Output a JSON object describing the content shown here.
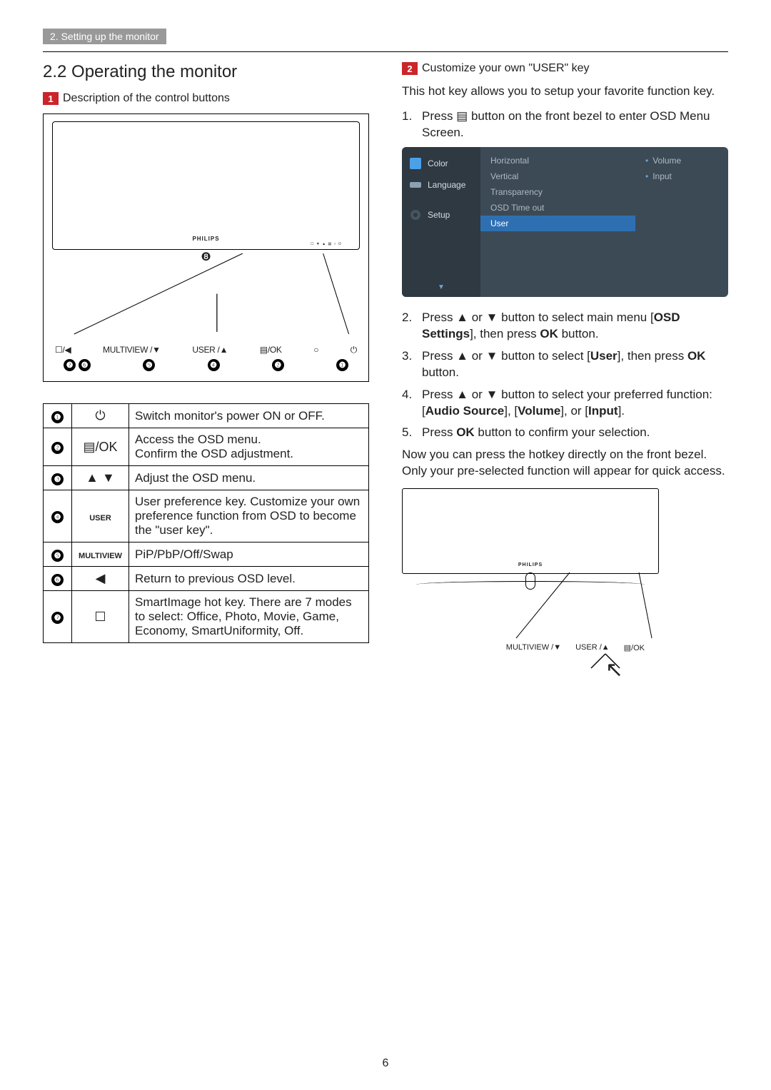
{
  "breadcrumb": "2. Setting up the monitor",
  "section_title": "2.2  Operating the monitor",
  "left": {
    "box1": {
      "num": "1",
      "title": "Description of the control buttons"
    },
    "brand": "PHILIPS",
    "ctrl_strip": {
      "b1_cue": "❽",
      "labels": [
        "☐/◀",
        "MULTIVIEW /▼",
        "USER /▲",
        "▤/OK",
        "○",
        "⏻"
      ],
      "nums": [
        "❼",
        "❻",
        "❺",
        "❹",
        "❷",
        "❶"
      ]
    },
    "table": [
      {
        "n": "❶",
        "icon": "⏻",
        "desc": "Switch monitor's power ON or OFF."
      },
      {
        "n": "❷",
        "icon": "▤/OK",
        "desc": "Access the OSD menu.\nConfirm the OSD adjustment."
      },
      {
        "n": "❸",
        "icon": "▲ ▼",
        "desc": "Adjust the OSD menu."
      },
      {
        "n": "❹",
        "icon": "USER",
        "desc": "User preference key. Customize your own preference function from OSD to become the \"user key\"."
      },
      {
        "n": "❺",
        "icon": "MULTIVIEW",
        "desc": "PiP/PbP/Off/Swap"
      },
      {
        "n": "❻",
        "icon": "◀",
        "desc": "Return to previous OSD level."
      },
      {
        "n": "❼",
        "icon": "☐",
        "desc": "SmartImage hot key. There are 7 modes to select: Office, Photo, Movie, Game, Economy, SmartUniformity, Off."
      }
    ]
  },
  "right": {
    "box2": {
      "num": "2",
      "title": "Customize your own \"USER\" key"
    },
    "intro": "This hot key allows you to setup your favorite function key.",
    "step1": "Press ▤ button on the front bezel to enter OSD Menu Screen.",
    "osd": {
      "left_items": [
        "Color",
        "Language",
        "",
        "Setup"
      ],
      "mid_items": [
        "Horizontal",
        "Vertical",
        "Transparency",
        "OSD Time out",
        "User"
      ],
      "mid_selected_index": 4,
      "right_items": [
        "Volume",
        "Input"
      ],
      "bg": "#3c4a55",
      "bg_left": "#2e3942",
      "sel_bg": "#2e6fb2"
    },
    "step2_a": "Press ▲ or ▼ button to select main menu [",
    "step2_b": "OSD Settings",
    "step2_c": "], then press ",
    "step2_d": "OK",
    "step2_e": " button.",
    "step3_a": "Press ▲ or ▼ button to select [",
    "step3_b": "User",
    "step3_c": "], then press ",
    "step3_d": "OK",
    "step3_e": " button.",
    "step4_a": "Press ▲ or ▼ button to select your preferred function: [",
    "step4_b": "Audio Source",
    "step4_c": "], [",
    "step4_d": "Volume",
    "step4_e": "], or [",
    "step4_f": "Input",
    "step4_g": "].",
    "step5_a": "Press ",
    "step5_b": "OK",
    "step5_c": " button to confirm your selection.",
    "outro": "Now you can press the hotkey  directly on the front bezel. Only your pre-selected function will appear for quick access.",
    "bezel_labels": [
      "MULTIVIEW /▼",
      "USER /▲",
      "▤/OK"
    ]
  },
  "page_num": "6"
}
